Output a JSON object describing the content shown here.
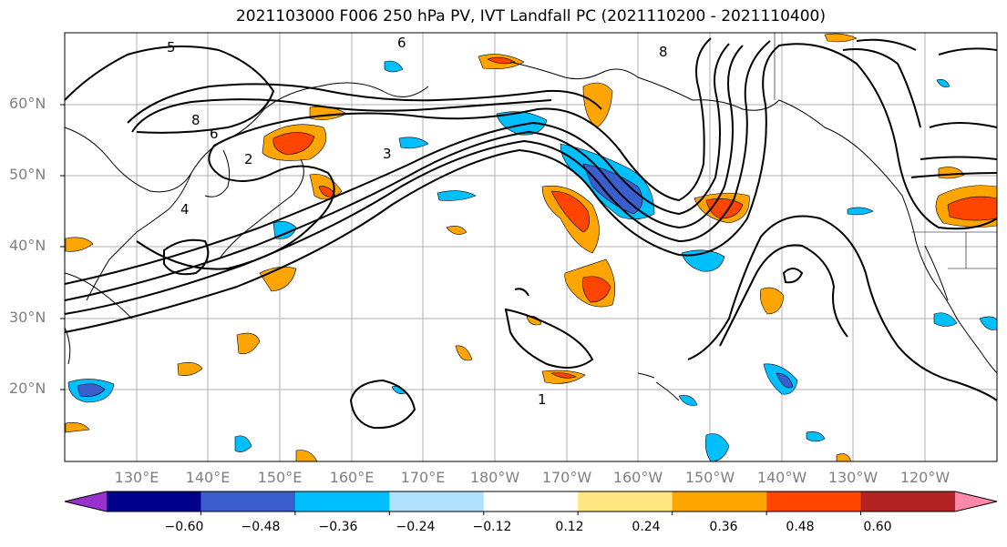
{
  "title": "2021103000 F006 250 hPa PV, IVT Landfall PC (2021110200 - 2021110400)",
  "lat_labels": [
    "60°N",
    "50°N",
    "40°N",
    "30°N",
    "20°N"
  ],
  "lon_labels": [
    "130°E",
    "140°E",
    "150°E",
    "160°E",
    "170°E",
    "180°W",
    "170°W",
    "160°W",
    "150°W",
    "140°W",
    "130°W",
    "120°W"
  ],
  "contour_labels": [
    "8",
    "6",
    "5",
    "4",
    "3",
    "2",
    "1",
    "6",
    "8"
  ],
  "colorbar": {
    "ticks": [
      "−0.60",
      "−0.48",
      "−0.36",
      "−0.24",
      "−0.12",
      "0.12",
      "0.24",
      "0.36",
      "0.48",
      "0.60"
    ],
    "colors": [
      "#9932cc",
      "#00008b",
      "#3a5fcd",
      "#00bfff",
      "#b0e2ff",
      "#ffffff",
      "#ffe680",
      "#ffa500",
      "#ff4500",
      "#b22222",
      "#ff88aa"
    ]
  }
}
